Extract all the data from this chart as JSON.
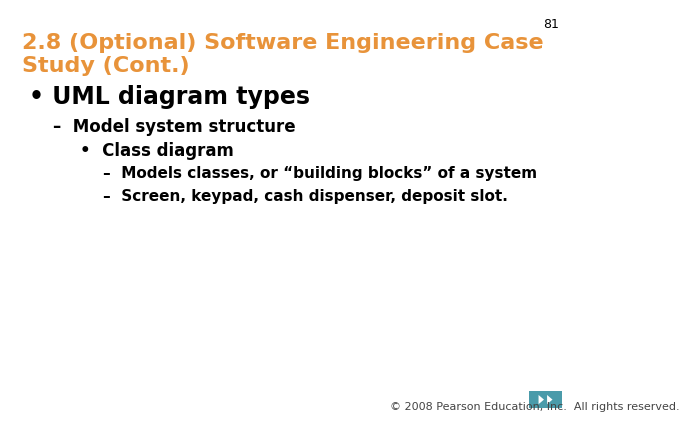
{
  "slide_number": "81",
  "title_line1": "2.8 (Optional) Software Engineering Case",
  "title_line2": "Study (Cont.)",
  "title_color": "#E8933A",
  "background_color": "#FFFFFF",
  "slide_number_color": "#000000",
  "slide_number_fontsize": 9,
  "title_fontsize": 16,
  "bullet1_text": "UML diagram types",
  "bullet1_fontsize": 17,
  "bullet2_text": "Model system structure",
  "bullet2_fontsize": 12,
  "bullet3_text": "Class diagram",
  "bullet3_fontsize": 12,
  "bullet4_text": "Models classes, or “building blocks” of a system",
  "bullet4_fontsize": 11,
  "bullet5_text": "Screen, keypad, cash dispenser, deposit slot.",
  "bullet5_fontsize": 11,
  "footer_text": "© 2008 Pearson Education, Inc.  All rights reserved.",
  "footer_color": "#444444",
  "footer_fontsize": 8,
  "body_text_color": "#000000",
  "nav_color": "#4A9BAA",
  "nav_bg_color": "#4A9BAA"
}
